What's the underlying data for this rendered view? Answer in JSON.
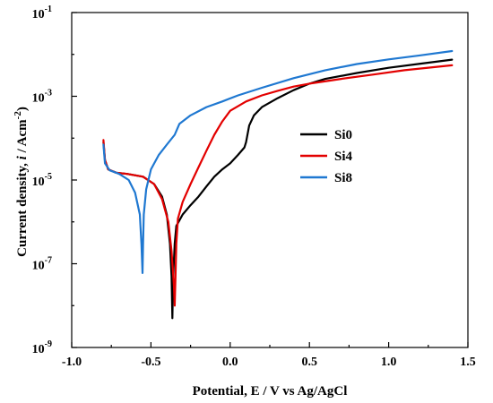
{
  "chart_data": {
    "type": "line",
    "xlabel": "Potential, E / V vs Ag/AgCl",
    "ylabel_parts": [
      "Current density, ",
      "i",
      " / Acm",
      "-2",
      ")"
    ],
    "ylabel_open": "(",
    "xlim": [
      -1.0,
      1.5
    ],
    "ylim_log10": [
      -9,
      -1
    ],
    "y_scale": "log",
    "x_ticks": [
      "-1.0",
      "-0.5",
      "0.0",
      "0.5",
      "1.0",
      "1.5"
    ],
    "y_ticks": [
      {
        "base": "10",
        "exp": "-9"
      },
      {
        "base": "10",
        "exp": "-7"
      },
      {
        "base": "10",
        "exp": "-5"
      },
      {
        "base": "10",
        "exp": "-3"
      },
      {
        "base": "10",
        "exp": "-1"
      }
    ],
    "legend_position": "right-middle",
    "grid": false,
    "series": [
      {
        "name": "Si0",
        "color": "#000000",
        "points": [
          [
            -0.8,
            8e-05
          ],
          [
            -0.79,
            3e-05
          ],
          [
            -0.77,
            1.8e-05
          ],
          [
            -0.72,
            1.5e-05
          ],
          [
            -0.65,
            1.4e-05
          ],
          [
            -0.55,
            1.2e-05
          ],
          [
            -0.48,
            8e-06
          ],
          [
            -0.43,
            4e-06
          ],
          [
            -0.4,
            1.5e-06
          ],
          [
            -0.38,
            3e-07
          ],
          [
            -0.37,
            5e-08
          ],
          [
            -0.365,
            5e-09
          ],
          [
            -0.36,
            5e-08
          ],
          [
            -0.35,
            3e-07
          ],
          [
            -0.34,
            8e-07
          ],
          [
            -0.3,
            1.5e-06
          ],
          [
            -0.25,
            2.5e-06
          ],
          [
            -0.2,
            4e-06
          ],
          [
            -0.15,
            7e-06
          ],
          [
            -0.1,
            1.2e-05
          ],
          [
            -0.05,
            1.8e-05
          ],
          [
            0.0,
            2.5e-05
          ],
          [
            0.05,
            4e-05
          ],
          [
            0.09,
            6e-05
          ],
          [
            0.1,
            8e-05
          ],
          [
            0.12,
            0.0002
          ],
          [
            0.15,
            0.00035
          ],
          [
            0.2,
            0.00055
          ],
          [
            0.3,
            0.0009
          ],
          [
            0.4,
            0.0014
          ],
          [
            0.5,
            0.002
          ],
          [
            0.6,
            0.0026
          ],
          [
            0.8,
            0.0036
          ],
          [
            1.0,
            0.0048
          ],
          [
            1.2,
            0.006
          ],
          [
            1.4,
            0.0075
          ]
        ]
      },
      {
        "name": "Si4",
        "color": "#e30000",
        "points": [
          [
            -0.8,
            9e-05
          ],
          [
            -0.79,
            3e-05
          ],
          [
            -0.77,
            1.8e-05
          ],
          [
            -0.72,
            1.5e-05
          ],
          [
            -0.65,
            1.4e-05
          ],
          [
            -0.55,
            1.2e-05
          ],
          [
            -0.48,
            8e-06
          ],
          [
            -0.43,
            3.5e-06
          ],
          [
            -0.39,
            1e-06
          ],
          [
            -0.37,
            2e-07
          ],
          [
            -0.355,
            3e-08
          ],
          [
            -0.35,
            1e-08
          ],
          [
            -0.345,
            5e-08
          ],
          [
            -0.34,
            3e-07
          ],
          [
            -0.33,
            1.2e-06
          ],
          [
            -0.3,
            3e-06
          ],
          [
            -0.25,
            8e-06
          ],
          [
            -0.2,
            2e-05
          ],
          [
            -0.15,
            5e-05
          ],
          [
            -0.1,
            0.00012
          ],
          [
            -0.05,
            0.00025
          ],
          [
            0.0,
            0.00045
          ],
          [
            0.1,
            0.00075
          ],
          [
            0.2,
            0.00105
          ],
          [
            0.3,
            0.00135
          ],
          [
            0.4,
            0.0017
          ],
          [
            0.5,
            0.002
          ],
          [
            0.7,
            0.0026
          ],
          [
            0.9,
            0.0033
          ],
          [
            1.1,
            0.0042
          ],
          [
            1.4,
            0.0055
          ]
        ]
      },
      {
        "name": "Si8",
        "color": "#1f78d1",
        "points": [
          [
            -0.8,
            7e-05
          ],
          [
            -0.79,
            2.5e-05
          ],
          [
            -0.76,
            1.7e-05
          ],
          [
            -0.7,
            1.4e-05
          ],
          [
            -0.64,
            1e-05
          ],
          [
            -0.6,
            5e-06
          ],
          [
            -0.57,
            1.5e-06
          ],
          [
            -0.56,
            3e-07
          ],
          [
            -0.553,
            6e-08
          ],
          [
            -0.55,
            3e-07
          ],
          [
            -0.545,
            1.5e-06
          ],
          [
            -0.53,
            6e-06
          ],
          [
            -0.5,
            1.8e-05
          ],
          [
            -0.45,
            4e-05
          ],
          [
            -0.4,
            7e-05
          ],
          [
            -0.35,
            0.00012
          ],
          [
            -0.32,
            0.00022
          ],
          [
            -0.25,
            0.00035
          ],
          [
            -0.15,
            0.00055
          ],
          [
            -0.05,
            0.00075
          ],
          [
            0.05,
            0.00105
          ],
          [
            0.2,
            0.0016
          ],
          [
            0.4,
            0.0027
          ],
          [
            0.6,
            0.0042
          ],
          [
            0.8,
            0.0059
          ],
          [
            1.0,
            0.0076
          ],
          [
            1.2,
            0.0095
          ],
          [
            1.4,
            0.012
          ]
        ]
      }
    ]
  }
}
